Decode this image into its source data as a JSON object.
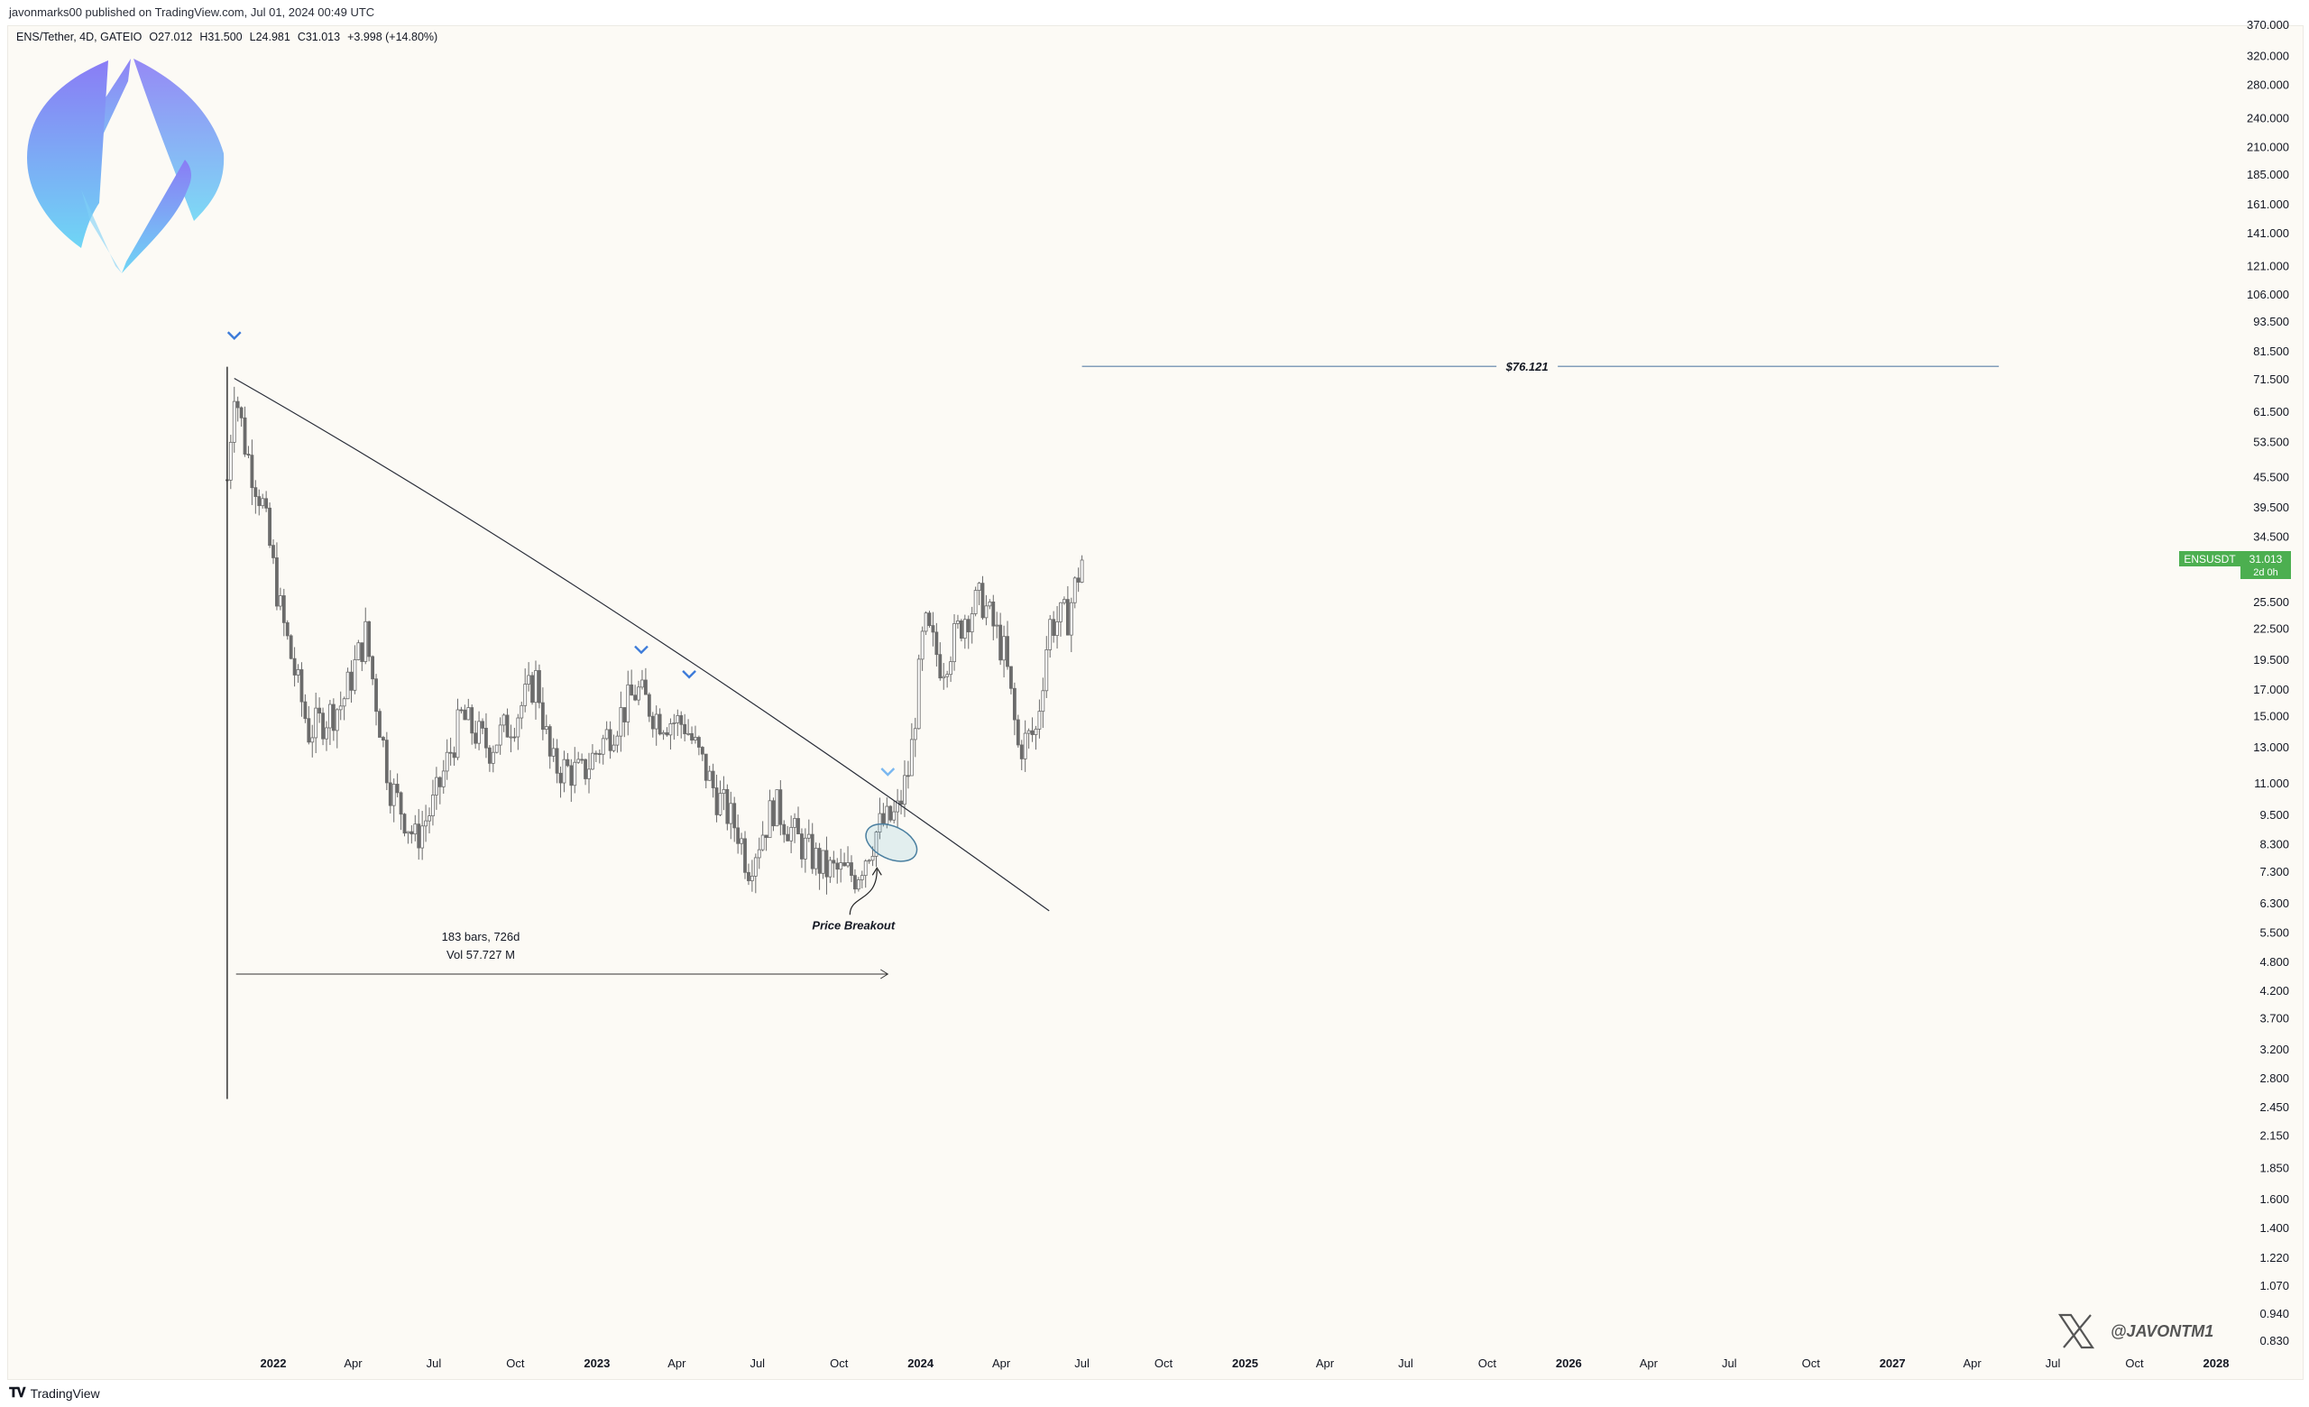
{
  "publisher_line": "javonmarks00 published on TradingView.com, Jul 01, 2024 00:49 UTC",
  "legend": {
    "symbol": "ENS/Tether, 4D, GATEIO",
    "open": "O27.012",
    "high": "H31.500",
    "low": "L24.981",
    "close": "C31.013",
    "change": "+3.998 (+14.80%)"
  },
  "price_tag": {
    "symbol": "ENSUSDT",
    "price": "31.013",
    "countdown": "2d 0h",
    "color": "#4caf50"
  },
  "level_label": "$76.121",
  "measure": {
    "bars": "183 bars, 726d",
    "volume": "Vol 57.727 M"
  },
  "breakout_label": "Price Breakout",
  "watermark": "@JAVONTM1",
  "watermark_icon": "x-logo-icon",
  "brand": "TradingView",
  "colors": {
    "background": "#fcfaf5",
    "candle": "#6b6b6b",
    "trendline": "#2a2e39",
    "level": "#5b7fa6",
    "marker": "#3d7bd9",
    "ellipse": "#4a7fa0",
    "logo_top": "#8a7cf5",
    "logo_bottom": "#6fd6f5"
  },
  "chart_data": {
    "type": "candlestick",
    "symbol": "ENS/Tether",
    "interval": "4D",
    "exchange": "GATEIO",
    "scale": "log",
    "y_tick_labels": [
      "370.000",
      "320.000",
      "280.000",
      "240.000",
      "210.000",
      "185.000",
      "161.000",
      "141.000",
      "121.000",
      "106.000",
      "93.500",
      "81.500",
      "71.500",
      "61.500",
      "53.500",
      "45.500",
      "39.500",
      "34.500",
      "25.500",
      "22.500",
      "19.500",
      "17.000",
      "15.000",
      "13.000",
      "11.000",
      "9.500",
      "8.300",
      "7.300",
      "6.300",
      "5.500",
      "4.800",
      "4.200",
      "3.700",
      "3.200",
      "2.800",
      "2.450",
      "2.150",
      "1.850",
      "1.600",
      "1.400",
      "1.220",
      "1.070",
      "0.940",
      "0.830"
    ],
    "x_tick_labels": [
      "2022",
      "Apr",
      "Jul",
      "Oct",
      "2023",
      "Apr",
      "Jul",
      "Oct",
      "2024",
      "Apr",
      "Jul",
      "Oct",
      "2025",
      "Apr",
      "Jul",
      "Oct",
      "2026",
      "Apr",
      "Jul",
      "Oct",
      "2027",
      "Apr",
      "Jul",
      "Oct",
      "2028"
    ],
    "x_range": [
      "2021-11-10",
      "2028-01-01"
    ],
    "price_path": [
      {
        "date": "2021-11-10",
        "close": 45
      },
      {
        "date": "2021-11-18",
        "close": 70
      },
      {
        "date": "2021-12-01",
        "close": 52
      },
      {
        "date": "2021-12-20",
        "close": 40
      },
      {
        "date": "2022-01-10",
        "close": 24
      },
      {
        "date": "2022-02-10",
        "close": 14
      },
      {
        "date": "2022-03-20",
        "close": 16
      },
      {
        "date": "2022-04-15",
        "close": 22
      },
      {
        "date": "2022-05-12",
        "close": 11
      },
      {
        "date": "2022-06-10",
        "close": 8.5
      },
      {
        "date": "2022-07-01",
        "close": 10
      },
      {
        "date": "2022-08-01",
        "close": 15
      },
      {
        "date": "2022-09-01",
        "close": 13
      },
      {
        "date": "2022-10-01",
        "close": 15
      },
      {
        "date": "2022-10-25",
        "close": 18
      },
      {
        "date": "2022-11-10",
        "close": 12
      },
      {
        "date": "2022-12-15",
        "close": 11.5
      },
      {
        "date": "2023-01-15",
        "close": 14
      },
      {
        "date": "2023-02-15",
        "close": 17
      },
      {
        "date": "2023-03-10",
        "close": 15
      },
      {
        "date": "2023-04-10",
        "close": 14.5
      },
      {
        "date": "2023-05-15",
        "close": 10.5
      },
      {
        "date": "2023-06-10",
        "close": 8.8
      },
      {
        "date": "2023-06-20",
        "close": 7.5
      },
      {
        "date": "2023-07-20",
        "close": 10
      },
      {
        "date": "2023-08-15",
        "close": 8.5
      },
      {
        "date": "2023-09-15",
        "close": 7.4
      },
      {
        "date": "2023-10-20",
        "close": 7.2
      },
      {
        "date": "2023-11-15",
        "close": 9
      },
      {
        "date": "2023-12-05",
        "close": 9.5
      },
      {
        "date": "2023-12-20",
        "close": 12
      },
      {
        "date": "2024-01-05",
        "close": 23
      },
      {
        "date": "2024-01-25",
        "close": 19
      },
      {
        "date": "2024-02-20",
        "close": 24
      },
      {
        "date": "2024-03-10",
        "close": 26
      },
      {
        "date": "2024-04-05",
        "close": 20
      },
      {
        "date": "2024-04-20",
        "close": 13
      },
      {
        "date": "2024-05-10",
        "close": 14
      },
      {
        "date": "2024-05-25",
        "close": 23
      },
      {
        "date": "2024-06-15",
        "close": 24
      },
      {
        "date": "2024-07-01",
        "close": 31.013
      }
    ],
    "resistance_level": 76.121,
    "trendline": {
      "start": {
        "date": "2021-11-18",
        "price": 72
      },
      "end": {
        "date": "2024-05-25",
        "price": 6.1
      }
    },
    "measure_range": {
      "start": "2021-11-20",
      "end": "2023-11-25",
      "bars": 183,
      "days": 726,
      "volume": "57.727 M"
    },
    "markers": [
      {
        "date": "2021-11-18",
        "price": 70
      },
      {
        "date": "2023-02-20",
        "price": 18.5
      },
      {
        "date": "2023-04-15",
        "price": 16.5
      },
      {
        "date": "2023-11-25",
        "price": 10.5
      }
    ],
    "breakout_point": {
      "date": "2023-11-25",
      "price": 8.8
    }
  }
}
